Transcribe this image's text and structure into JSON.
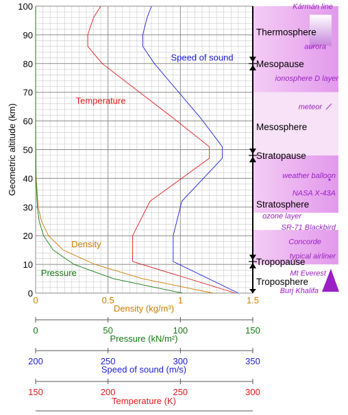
{
  "chart_data": {
    "type": "line",
    "ylabel": "Geometric altitude (km)",
    "ylim": [
      0,
      100
    ],
    "yticks": [
      0,
      10,
      20,
      30,
      40,
      50,
      60,
      70,
      80,
      90,
      100
    ],
    "grid": true,
    "axes": [
      {
        "id": "density",
        "label": "Density (kg/m³)",
        "color": "#cc7a00",
        "range": [
          0,
          1.5
        ],
        "ticks": [
          "0",
          "0.5",
          "1",
          "1.5"
        ]
      },
      {
        "id": "pressure",
        "label": "Pressure (kN/m²)",
        "color": "#117711",
        "range": [
          0,
          150
        ],
        "ticks": [
          "0",
          "50",
          "100",
          "150"
        ]
      },
      {
        "id": "speed",
        "label": "Speed of sound (m/s)",
        "color": "#1c1cd6",
        "range": [
          200,
          350
        ],
        "ticks": [
          "200",
          "250",
          "300",
          "350"
        ]
      },
      {
        "id": "temperature",
        "label": "Temperature (K)",
        "color": "#e01818",
        "range": [
          150,
          300
        ],
        "ticks": [
          "150",
          "200",
          "250",
          "300"
        ]
      }
    ],
    "series": [
      {
        "name": "Temperature",
        "axis": "temperature",
        "color": "#e01818",
        "points": [
          [
            288,
            0
          ],
          [
            217,
            11
          ],
          [
            217,
            20
          ],
          [
            229,
            32
          ],
          [
            270,
            47
          ],
          [
            270,
            51
          ],
          [
            245,
            61
          ],
          [
            196,
            80
          ],
          [
            186,
            86
          ],
          [
            186,
            90
          ],
          [
            190,
            96
          ],
          [
            195,
            100
          ]
        ]
      },
      {
        "name": "Speed of sound",
        "axis": "speed",
        "color": "#1c1cd6",
        "points": [
          [
            340,
            0
          ],
          [
            295,
            11
          ],
          [
            295,
            20
          ],
          [
            301,
            32
          ],
          [
            329,
            47
          ],
          [
            329,
            51
          ],
          [
            314,
            61
          ],
          [
            282,
            80
          ],
          [
            274,
            86
          ],
          [
            274,
            90
          ],
          [
            277,
            96
          ],
          [
            280,
            100
          ]
        ]
      },
      {
        "name": "Density",
        "axis": "density",
        "color": "#cc7a00",
        "points": [
          [
            1.225,
            0
          ],
          [
            0.74,
            5
          ],
          [
            0.41,
            10
          ],
          [
            0.19,
            15
          ],
          [
            0.089,
            20
          ],
          [
            0.041,
            25
          ],
          [
            0.018,
            30
          ],
          [
            0.004,
            40
          ],
          [
            0.001,
            50
          ],
          [
            0.0003,
            60
          ],
          [
            0.0001,
            70
          ],
          [
            0,
            100
          ]
        ]
      },
      {
        "name": "Pressure",
        "axis": "pressure",
        "color": "#117711",
        "points": [
          [
            101.3,
            0
          ],
          [
            54,
            5
          ],
          [
            26.5,
            10
          ],
          [
            12.1,
            15
          ],
          [
            5.5,
            20
          ],
          [
            2.5,
            25
          ],
          [
            1.2,
            30
          ],
          [
            0.29,
            40
          ],
          [
            0.08,
            50
          ],
          [
            0.02,
            60
          ],
          [
            0.005,
            70
          ],
          [
            0,
            100
          ]
        ]
      }
    ],
    "layers": [
      {
        "name": "Thermosphere",
        "altitude": 91
      },
      {
        "name": "Mesopause",
        "altitude": 80,
        "boundary": true
      },
      {
        "name": "Mesosphere",
        "altitude": 58
      },
      {
        "name": "Stratopause",
        "altitude": 48,
        "boundary": true
      },
      {
        "name": "Stratosphere",
        "altitude": 31
      },
      {
        "name": "Tropopause",
        "altitude": 11,
        "boundary": true
      },
      {
        "name": "Troposphere",
        "altitude": 4
      }
    ],
    "annotations": [
      {
        "text": "Kármán line",
        "altitude": 100
      },
      {
        "text": "aurora",
        "altitude": 86
      },
      {
        "text": "ionosphere D layer",
        "altitude": 75
      },
      {
        "text": "meteor",
        "altitude": 65
      },
      {
        "text": "weather balloon",
        "altitude": 41
      },
      {
        "text": "NASA X-43A",
        "altitude": 35
      },
      {
        "text": "ozone layer",
        "altitude": 27
      },
      {
        "text": "SR-71 Blackbird",
        "altitude": 23
      },
      {
        "text": "Concorde",
        "altitude": 18
      },
      {
        "text": "typical airliner",
        "altitude": 13
      },
      {
        "text": "Mt Everest",
        "altitude": 7
      },
      {
        "text": "Burj Khalifa",
        "altitude": 1
      }
    ]
  }
}
